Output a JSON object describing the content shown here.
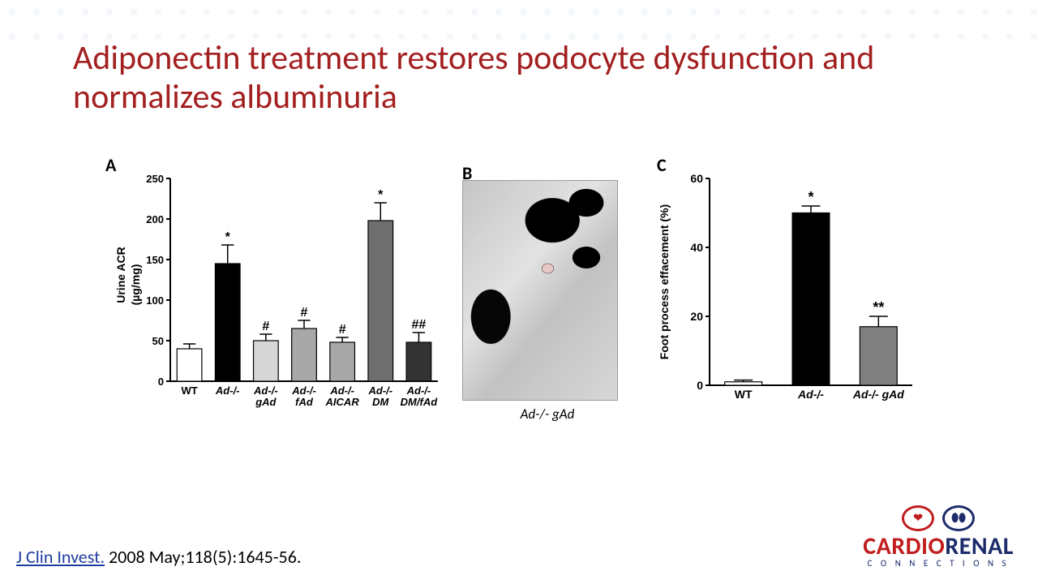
{
  "title": "Adiponectin treatment restores podocyte dysfunction and normalizes albuminuria",
  "citation": {
    "journal": "J Clin Invest.",
    "rest": " 2008 May;118(5):1645-56."
  },
  "logo": {
    "w1": "CARDIO",
    "w2": "RENAL",
    "sub": "C O N N E C T I O N S",
    "c1": "#c11e1e",
    "c2": "#1d2c6b"
  },
  "panelA": {
    "label": "A",
    "type": "bar",
    "ylabel_line1": "Urine ACR",
    "ylabel_line2": "(µg/mg)",
    "ylim": [
      0,
      250
    ],
    "ytick_step": 50,
    "categories": [
      "WT",
      "Ad-/-",
      "Ad-/-\ngAd",
      "Ad-/-\nfAd",
      "Ad-/-\nAICAR",
      "Ad-/-\nDM",
      "Ad-/-\nDM/fAd"
    ],
    "values": [
      40,
      145,
      50,
      65,
      48,
      198,
      48
    ],
    "errors": [
      6,
      23,
      8,
      10,
      6,
      22,
      12
    ],
    "fills": [
      "#ffffff",
      "#000000",
      "#d6d6d6",
      "#a8a8a8",
      "#a8a8a8",
      "#6f6f6f",
      "#333333"
    ],
    "annotations": [
      "",
      "*",
      "#",
      "#",
      "#",
      "*",
      "##"
    ],
    "bar_width": 0.65,
    "axis_color": "#000000",
    "label_fontsize": 14,
    "tick_fontsize": 13,
    "annot_fontsize": 16
  },
  "panelB": {
    "label": "B",
    "caption": "Ad-/- gAd"
  },
  "panelC": {
    "label": "C",
    "type": "bar",
    "ylabel": "Foot process effacement (%)",
    "ylim": [
      0,
      60
    ],
    "ytick_step": 20,
    "categories": [
      "WT",
      "Ad-/-",
      "Ad-/- gAd"
    ],
    "values": [
      1,
      50,
      17
    ],
    "errors": [
      0.5,
      2,
      3
    ],
    "fills": [
      "#ffffff",
      "#000000",
      "#808080"
    ],
    "annotations": [
      "",
      "*",
      "**"
    ],
    "bar_width": 0.55,
    "axis_color": "#000000",
    "label_fontsize": 14,
    "tick_fontsize": 14,
    "annot_fontsize": 18
  }
}
